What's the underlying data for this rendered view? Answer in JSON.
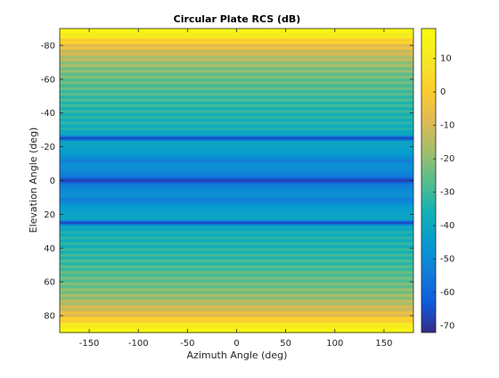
{
  "chart_data": {
    "type": "heatmap",
    "title": "Circular Plate RCS (dB)",
    "xlabel": "Azimuth Angle (deg)",
    "ylabel": "Elevation Angle (deg)",
    "xlim": [
      -180,
      180
    ],
    "ylim": [
      -90,
      90
    ],
    "y_direction": "reversed",
    "x_ticks": [
      -150,
      -100,
      -50,
      0,
      50,
      100,
      150
    ],
    "y_ticks": [
      -80,
      -60,
      -40,
      -20,
      0,
      20,
      40,
      60,
      80
    ],
    "colorbar": {
      "range": [
        -72,
        19
      ],
      "ticks": [
        10,
        0,
        -10,
        -20,
        -30,
        -40,
        -50,
        -60,
        -70
      ],
      "colormap": "parula",
      "position": "right"
    },
    "variation": "constant along azimuth, varies with elevation",
    "profile": {
      "elevation_deg": [
        -90,
        -88,
        -85,
        -80,
        -75,
        -70,
        -65,
        -60,
        -55,
        -50,
        -45,
        -40,
        -35,
        -30,
        -27,
        -25,
        -23,
        -20,
        -15,
        -11,
        -10,
        -5,
        -2,
        0,
        2,
        5,
        10,
        11,
        15,
        20,
        23,
        25,
        27,
        30,
        35,
        40,
        45,
        50,
        55,
        60,
        65,
        70,
        75,
        80,
        85,
        88,
        90
      ],
      "rcs_db": [
        19,
        15,
        8,
        -5,
        -12,
        -18,
        -22,
        -25,
        -27,
        -30,
        -32,
        -34,
        -35,
        -37,
        -40,
        -70,
        -40,
        -42,
        -45,
        -55,
        -48,
        -50,
        -56,
        -70,
        -56,
        -50,
        -48,
        -55,
        -45,
        -42,
        -40,
        -70,
        -40,
        -37,
        -35,
        -34,
        -32,
        -30,
        -27,
        -25,
        -22,
        -18,
        -12,
        -5,
        8,
        15,
        19
      ]
    }
  }
}
